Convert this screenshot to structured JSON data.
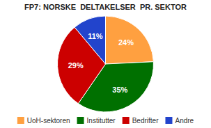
{
  "chart_data": {
    "type": "pie",
    "title": "FP7: NORSKE  DELTAKELSER  PR. SEKTOR",
    "categories": [
      "UoH-sektoren",
      "Institutter",
      "Bedrifter",
      "Andre"
    ],
    "values": [
      24,
      35,
      29,
      11
    ],
    "value_labels": [
      "24%",
      "35%",
      "29%",
      "11%"
    ],
    "colors": [
      "#FFA040",
      "#007000",
      "#CC0000",
      "#2244CC"
    ],
    "data_labels": true,
    "legend": "bottom"
  }
}
